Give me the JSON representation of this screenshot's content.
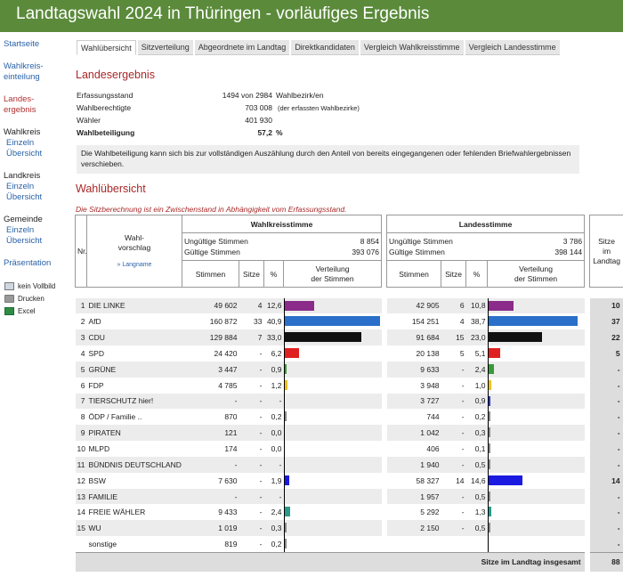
{
  "header": {
    "title": "Landtagswahl 2024 in Thüringen - vorläufiges Ergebnis"
  },
  "sidebar": {
    "links": [
      {
        "label": "Startseite"
      },
      {
        "label": "Wahlkreis-\neinteilung"
      },
      {
        "label": "Landes-\nergebnis"
      }
    ],
    "groups": [
      {
        "head": "Wahlkreis",
        "subs": [
          "Einzeln",
          "Übersicht"
        ]
      },
      {
        "head": "Landkreis",
        "subs": [
          "Einzeln",
          "Übersicht"
        ]
      },
      {
        "head": "Gemeinde",
        "subs": [
          "Einzeln",
          "Übersicht"
        ]
      }
    ],
    "praesentation": "Präsentation",
    "tools": [
      "kein Vollbild",
      "Drucken",
      "Excel"
    ]
  },
  "tabs": [
    "Wahlübersicht",
    "Sitzverteilung",
    "Abgeordnete im Landtag",
    "Direktkandidaten",
    "Vergleich Wahlkreisstimme",
    "Vergleich Landesstimme"
  ],
  "landesergebnis": {
    "title": "Landesergebnis",
    "rows": [
      {
        "label": "Erfassungsstand",
        "value": "1494 von 2984",
        "extra": "Wahlbezirk/en"
      },
      {
        "label": "Wahlberechtigte",
        "value": "703 008",
        "extra": "(der erfassten Wahlbezirke)"
      },
      {
        "label": "Wähler",
        "value": "401 930",
        "extra": ""
      },
      {
        "label": "Wahlbeteiligung",
        "value": "57,2",
        "extra": "%"
      }
    ],
    "note": "Die Wahlbeteiligung kann sich bis zur vollständigen Auszählung durch den Anteil von bereits eingegangenen oder fehlenden Briefwahlergebnissen verschieben."
  },
  "wahluebersicht": {
    "title": "Wahlübersicht",
    "warning": "Die Sitzberechnung ist ein Zwischenstand in Abhängigkeit vom Erfassungsstand.",
    "headers": {
      "nr": "Nr.",
      "vorschlag": "Wahl-\nvorschlag",
      "langname": "» Langname",
      "wk": "Wahlkreisstimme",
      "ls": "Landesstimme",
      "sitze_landtag": "Sitze\nim\nLandtag",
      "ungueltig": "Ungültige Stimmen",
      "gueltig": "Gültige Stimmen",
      "stimmen": "Stimmen",
      "sitze": "Sitze",
      "pct": "%",
      "verteilung": "Verteilung\nder Stimmen"
    },
    "wk_ungueltig": "8 854",
    "wk_gueltig": "393 076",
    "ls_ungueltig": "3 786",
    "ls_gueltig": "398 144",
    "total_label": "Sitze im Landtag insgesamt",
    "total_seats": "88"
  },
  "chart_data": {
    "type": "table",
    "columns": [
      "Nr.",
      "Wahlvorschlag",
      "WK Stimmen",
      "WK Sitze",
      "WK %",
      "LS Stimmen",
      "LS Sitze",
      "LS %",
      "Sitze im Landtag"
    ],
    "rows": [
      {
        "nr": "1",
        "name": "DIE LINKE",
        "wk_st": "49 602",
        "wk_si": "4",
        "wk_pct": "12,6",
        "wk_val": 12.6,
        "ls_st": "42 905",
        "ls_si": "6",
        "ls_pct": "10,8",
        "ls_val": 10.8,
        "seats": "10",
        "color": "#8b2c8b"
      },
      {
        "nr": "2",
        "name": "AfD",
        "wk_st": "160 872",
        "wk_si": "33",
        "wk_pct": "40,9",
        "wk_val": 40.9,
        "ls_st": "154 251",
        "ls_si": "4",
        "ls_pct": "38,7",
        "ls_val": 38.7,
        "seats": "37",
        "color": "#2a6fc9"
      },
      {
        "nr": "3",
        "name": "CDU",
        "wk_st": "129 884",
        "wk_si": "7",
        "wk_pct": "33,0",
        "wk_val": 33.0,
        "ls_st": "91 684",
        "ls_si": "15",
        "ls_pct": "23,0",
        "ls_val": 23.0,
        "seats": "22",
        "color": "#111111"
      },
      {
        "nr": "4",
        "name": "SPD",
        "wk_st": "24 420",
        "wk_si": "-",
        "wk_pct": "6,2",
        "wk_val": 6.2,
        "ls_st": "20 138",
        "ls_si": "5",
        "ls_pct": "5,1",
        "ls_val": 5.1,
        "seats": "5",
        "color": "#e02020"
      },
      {
        "nr": "5",
        "name": "GRÜNE",
        "wk_st": "3 447",
        "wk_si": "-",
        "wk_pct": "0,9",
        "wk_val": 0.9,
        "ls_st": "9 633",
        "ls_si": "-",
        "ls_pct": "2,4",
        "ls_val": 2.4,
        "seats": "-",
        "color": "#3a9a3a"
      },
      {
        "nr": "6",
        "name": "FDP",
        "wk_st": "4 785",
        "wk_si": "-",
        "wk_pct": "1,2",
        "wk_val": 1.2,
        "ls_st": "3 948",
        "ls_si": "-",
        "ls_pct": "1,0",
        "ls_val": 1.0,
        "seats": "-",
        "color": "#e8c020"
      },
      {
        "nr": "7",
        "name": "TIERSCHUTZ hier!",
        "wk_st": "-",
        "wk_si": "-",
        "wk_pct": "-",
        "wk_val": 0,
        "ls_st": "3 727",
        "ls_si": "-",
        "ls_pct": "0,9",
        "ls_val": 0.9,
        "seats": "-",
        "color": "#2a3acc"
      },
      {
        "nr": "8",
        "name": "ÖDP / Familie ..",
        "wk_st": "870",
        "wk_si": "-",
        "wk_pct": "0,2",
        "wk_val": 0.2,
        "ls_st": "744",
        "ls_si": "-",
        "ls_pct": "0,2",
        "ls_val": 0.2,
        "seats": "-",
        "color": "#888888"
      },
      {
        "nr": "9",
        "name": "PIRATEN",
        "wk_st": "121",
        "wk_si": "-",
        "wk_pct": "0,0",
        "wk_val": 0.0,
        "ls_st": "1 042",
        "ls_si": "-",
        "ls_pct": "0,3",
        "ls_val": 0.3,
        "seats": "-",
        "color": "#888888"
      },
      {
        "nr": "10",
        "name": "MLPD",
        "wk_st": "174",
        "wk_si": "-",
        "wk_pct": "0,0",
        "wk_val": 0.0,
        "ls_st": "406",
        "ls_si": "-",
        "ls_pct": "0,1",
        "ls_val": 0.1,
        "seats": "-",
        "color": "#888888"
      },
      {
        "nr": "11",
        "name": "BÜNDNIS DEUTSCHLAND",
        "wk_st": "-",
        "wk_si": "-",
        "wk_pct": "-",
        "wk_val": 0,
        "ls_st": "1 940",
        "ls_si": "-",
        "ls_pct": "0,5",
        "ls_val": 0.5,
        "seats": "-",
        "color": "#888888"
      },
      {
        "nr": "12",
        "name": "BSW",
        "wk_st": "7 630",
        "wk_si": "-",
        "wk_pct": "1,9",
        "wk_val": 1.9,
        "ls_st": "58 327",
        "ls_si": "14",
        "ls_pct": "14,6",
        "ls_val": 14.6,
        "seats": "14",
        "color": "#1a1ae0"
      },
      {
        "nr": "13",
        "name": "FAMILIE",
        "wk_st": "-",
        "wk_si": "-",
        "wk_pct": "-",
        "wk_val": 0,
        "ls_st": "1 957",
        "ls_si": "-",
        "ls_pct": "0,5",
        "ls_val": 0.5,
        "seats": "-",
        "color": "#888888"
      },
      {
        "nr": "14",
        "name": "FREIE WÄHLER",
        "wk_st": "9 433",
        "wk_si": "-",
        "wk_pct": "2,4",
        "wk_val": 2.4,
        "ls_st": "5 292",
        "ls_si": "-",
        "ls_pct": "1,3",
        "ls_val": 1.3,
        "seats": "-",
        "color": "#2a9a8a"
      },
      {
        "nr": "15",
        "name": "WU",
        "wk_st": "1 019",
        "wk_si": "-",
        "wk_pct": "0,3",
        "wk_val": 0.3,
        "ls_st": "2 150",
        "ls_si": "-",
        "ls_pct": "0,5",
        "ls_val": 0.5,
        "seats": "-",
        "color": "#888888"
      },
      {
        "nr": "",
        "name": "sonstige",
        "wk_st": "819",
        "wk_si": "-",
        "wk_pct": "0,2",
        "wk_val": 0.2,
        "ls_st": "",
        "ls_si": "",
        "ls_pct": "",
        "ls_val": 0,
        "seats": "-",
        "color": "#888888"
      }
    ]
  }
}
